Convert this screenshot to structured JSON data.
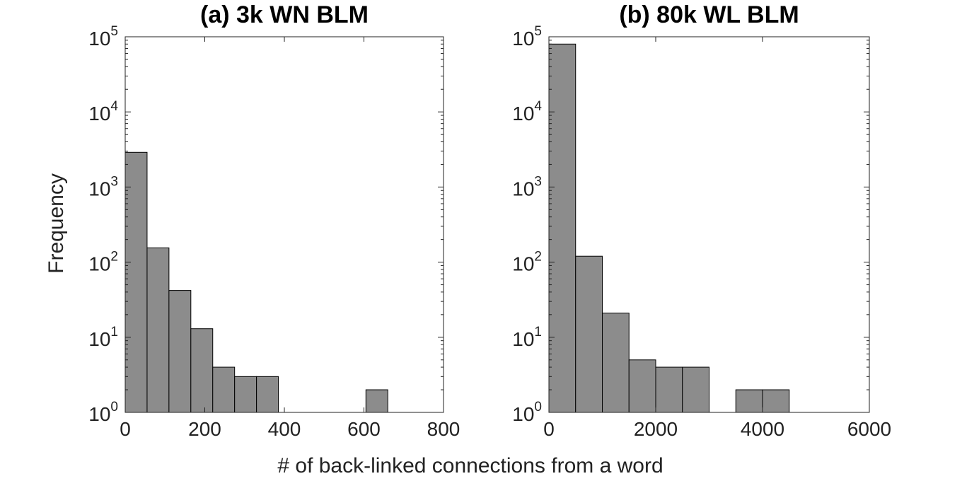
{
  "figure": {
    "shared_xlabel": "# of back-linked connections from a word",
    "shared_ylabel": "Frequency"
  },
  "chart_data": [
    {
      "type": "bar",
      "title": "(a) 3k WN BLM",
      "xlabel": "# of back-linked connections from a word",
      "ylabel": "Frequency",
      "yscale": "log",
      "xlim": [
        0,
        800
      ],
      "ylim": [
        1,
        100000
      ],
      "xticks": [
        0,
        200,
        400,
        600,
        800
      ],
      "yticks": [
        {
          "base": "10",
          "exp": "0"
        },
        {
          "base": "10",
          "exp": "1"
        },
        {
          "base": "10",
          "exp": "2"
        },
        {
          "base": "10",
          "exp": "3"
        },
        {
          "base": "10",
          "exp": "4"
        },
        {
          "base": "10",
          "exp": "5"
        }
      ],
      "bin_edges": [
        0,
        55,
        110,
        165,
        220,
        275,
        330,
        385,
        440,
        495,
        550,
        605,
        660,
        715,
        770
      ],
      "values": [
        2900,
        155,
        42,
        13,
        4,
        3,
        3,
        1,
        1,
        1,
        1,
        2,
        1,
        1
      ],
      "grid": false,
      "legend": "none"
    },
    {
      "type": "bar",
      "title": "(b) 80k WL BLM",
      "xlabel": "# of back-linked connections from a word",
      "ylabel": "Frequency",
      "yscale": "log",
      "xlim": [
        0,
        6000
      ],
      "ylim": [
        1,
        100000
      ],
      "xticks": [
        0,
        2000,
        4000,
        6000
      ],
      "yticks": [
        {
          "base": "10",
          "exp": "0"
        },
        {
          "base": "10",
          "exp": "1"
        },
        {
          "base": "10",
          "exp": "2"
        },
        {
          "base": "10",
          "exp": "3"
        },
        {
          "base": "10",
          "exp": "4"
        },
        {
          "base": "10",
          "exp": "5"
        }
      ],
      "bin_edges": [
        0,
        500,
        1000,
        1500,
        2000,
        2500,
        3000,
        3500,
        4000,
        4500,
        5000,
        5500,
        6000
      ],
      "values": [
        80000,
        120,
        21,
        5,
        4,
        4,
        1,
        2,
        2,
        1,
        1,
        1
      ],
      "grid": false,
      "legend": "none"
    }
  ]
}
